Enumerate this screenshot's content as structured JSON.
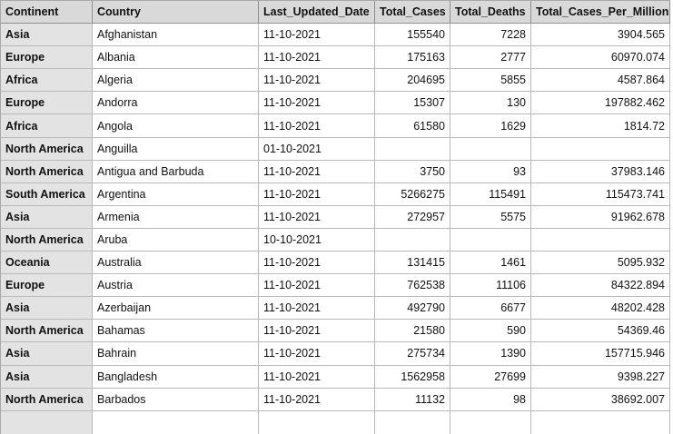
{
  "columns": [
    "Continent",
    "Country",
    "Last_Updated_Date",
    "Total_Cases",
    "Total_Deaths",
    "Total_Cases_Per_Million"
  ],
  "rows": [
    [
      "Asia",
      "Afghanistan",
      "11-10-2021",
      "155540",
      "7228",
      "3904.565"
    ],
    [
      "Europe",
      "Albania",
      "11-10-2021",
      "175163",
      "2777",
      "60970.074"
    ],
    [
      "Africa",
      "Algeria",
      "11-10-2021",
      "204695",
      "5855",
      "4587.864"
    ],
    [
      "Europe",
      "Andorra",
      "11-10-2021",
      "15307",
      "130",
      "197882.462"
    ],
    [
      "Africa",
      "Angola",
      "11-10-2021",
      "61580",
      "1629",
      "1814.72"
    ],
    [
      "North America",
      "Anguilla",
      "01-10-2021",
      "",
      "",
      ""
    ],
    [
      "North America",
      "Antigua and Barbuda",
      "11-10-2021",
      "3750",
      "93",
      "37983.146"
    ],
    [
      "South America",
      "Argentina",
      "11-10-2021",
      "5266275",
      "115491",
      "115473.741"
    ],
    [
      "Asia",
      "Armenia",
      "11-10-2021",
      "272957",
      "5575",
      "91962.678"
    ],
    [
      "North America",
      "Aruba",
      "10-10-2021",
      "",
      "",
      ""
    ],
    [
      "Oceania",
      "Australia",
      "11-10-2021",
      "131415",
      "1461",
      "5095.932"
    ],
    [
      "Europe",
      "Austria",
      "11-10-2021",
      "762538",
      "11106",
      "84322.894"
    ],
    [
      "Asia",
      "Azerbaijan",
      "11-10-2021",
      "492790",
      "6677",
      "48202.428"
    ],
    [
      "North America",
      "Bahamas",
      "11-10-2021",
      "21580",
      "590",
      "54369.46"
    ],
    [
      "Asia",
      "Bahrain",
      "11-10-2021",
      "275734",
      "1390",
      "157715.946"
    ],
    [
      "Asia",
      "Bangladesh",
      "11-10-2021",
      "1562958",
      "27699",
      "9398.227"
    ],
    [
      "North America",
      "Barbados",
      "11-10-2021",
      "11132",
      "98",
      "38692.007"
    ]
  ]
}
